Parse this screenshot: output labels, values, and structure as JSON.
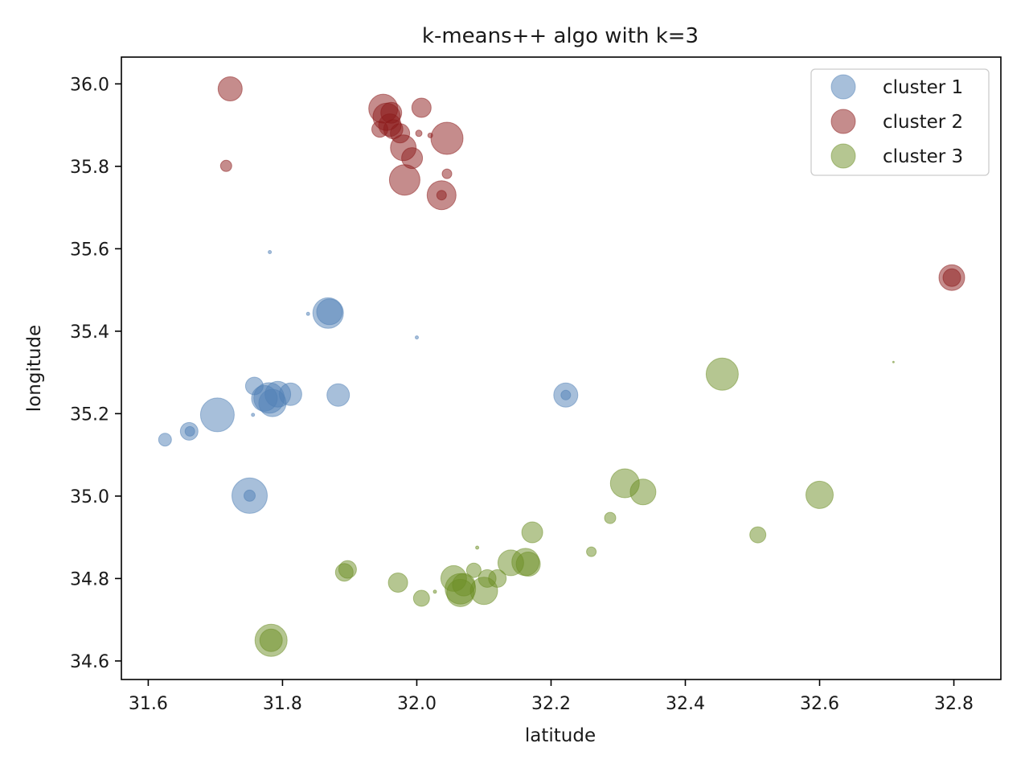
{
  "chart_data": {
    "type": "scatter",
    "title": "k-means++ algo with k=3",
    "xlabel": "latitude",
    "ylabel": "longitude",
    "xlim": [
      31.56,
      32.87
    ],
    "ylim": [
      34.555,
      36.065
    ],
    "xticks": [
      31.6,
      31.8,
      32.0,
      32.2,
      32.4,
      32.6,
      32.8
    ],
    "yticks": [
      34.6,
      34.8,
      35.0,
      35.2,
      35.4,
      35.6,
      35.8,
      36.0
    ],
    "xtick_labels": [
      "31.6",
      "31.8",
      "32.0",
      "32.2",
      "32.4",
      "32.6",
      "32.8"
    ],
    "ytick_labels": [
      "34.6",
      "34.8",
      "35.0",
      "35.2",
      "35.4",
      "35.6",
      "35.8",
      "36.0"
    ],
    "grid": false,
    "legend_position": "top-right",
    "series": [
      {
        "name": "cluster 1",
        "color": "#4f7fb5",
        "points": [
          [
            31.625,
            35.137,
            8
          ],
          [
            31.661,
            35.157,
            11
          ],
          [
            31.662,
            35.157,
            6
          ],
          [
            31.703,
            35.197,
            21
          ],
          [
            31.751,
            35.001,
            22
          ],
          [
            31.751,
            35.001,
            7
          ],
          [
            31.758,
            35.267,
            11
          ],
          [
            31.756,
            35.197,
            2
          ],
          [
            31.781,
            35.592,
            2
          ],
          [
            31.785,
            35.226,
            17
          ],
          [
            31.78,
            35.238,
            19
          ],
          [
            31.793,
            35.247,
            16
          ],
          [
            31.812,
            35.247,
            14
          ],
          [
            31.773,
            35.237,
            16
          ],
          [
            31.838,
            35.442,
            2
          ],
          [
            31.868,
            35.444,
            19
          ],
          [
            31.87,
            35.447,
            16
          ],
          [
            31.883,
            35.245,
            14
          ],
          [
            32.0,
            35.385,
            2
          ],
          [
            32.222,
            35.245,
            15
          ],
          [
            32.222,
            35.245,
            6
          ]
        ]
      },
      {
        "name": "cluster 2",
        "color": "#8b1a1a",
        "points": [
          [
            31.722,
            35.988,
            15
          ],
          [
            31.716,
            35.801,
            7
          ],
          [
            31.95,
            35.94,
            18
          ],
          [
            31.955,
            35.92,
            17
          ],
          [
            31.96,
            35.9,
            14
          ],
          [
            31.965,
            35.89,
            12
          ],
          [
            31.945,
            35.89,
            10
          ],
          [
            31.975,
            35.88,
            12
          ],
          [
            31.962,
            35.93,
            13
          ],
          [
            31.98,
            35.845,
            16
          ],
          [
            31.993,
            35.82,
            13
          ],
          [
            31.982,
            35.767,
            19
          ],
          [
            32.007,
            35.942,
            12
          ],
          [
            32.045,
            35.868,
            20
          ],
          [
            32.037,
            35.73,
            18
          ],
          [
            32.037,
            35.73,
            6
          ],
          [
            32.045,
            35.782,
            6
          ],
          [
            32.003,
            35.88,
            4
          ],
          [
            32.02,
            35.875,
            3
          ],
          [
            32.797,
            35.53,
            16
          ],
          [
            32.797,
            35.53,
            11
          ]
        ]
      },
      {
        "name": "cluster 3",
        "color": "#6b8e23",
        "points": [
          [
            31.783,
            34.65,
            20
          ],
          [
            31.783,
            34.65,
            14
          ],
          [
            31.892,
            34.815,
            11
          ],
          [
            31.897,
            34.822,
            11
          ],
          [
            31.972,
            34.79,
            12
          ],
          [
            32.007,
            34.752,
            10
          ],
          [
            32.027,
            34.768,
            2
          ],
          [
            32.055,
            34.8,
            16
          ],
          [
            32.065,
            34.775,
            19
          ],
          [
            32.065,
            34.765,
            17
          ],
          [
            32.07,
            34.785,
            14
          ],
          [
            32.085,
            34.82,
            9
          ],
          [
            32.1,
            34.77,
            17
          ],
          [
            32.105,
            34.8,
            11
          ],
          [
            32.12,
            34.8,
            11
          ],
          [
            32.14,
            34.838,
            16
          ],
          [
            32.162,
            34.84,
            17
          ],
          [
            32.166,
            34.835,
            15
          ],
          [
            32.172,
            34.912,
            13
          ],
          [
            32.09,
            34.875,
            2
          ],
          [
            32.26,
            34.865,
            6
          ],
          [
            32.288,
            34.947,
            7
          ],
          [
            32.31,
            35.031,
            18
          ],
          [
            32.337,
            35.01,
            16
          ],
          [
            32.455,
            35.296,
            20
          ],
          [
            32.508,
            34.906,
            10
          ],
          [
            32.6,
            35.003,
            17
          ],
          [
            32.71,
            35.325,
            1
          ]
        ]
      }
    ]
  }
}
